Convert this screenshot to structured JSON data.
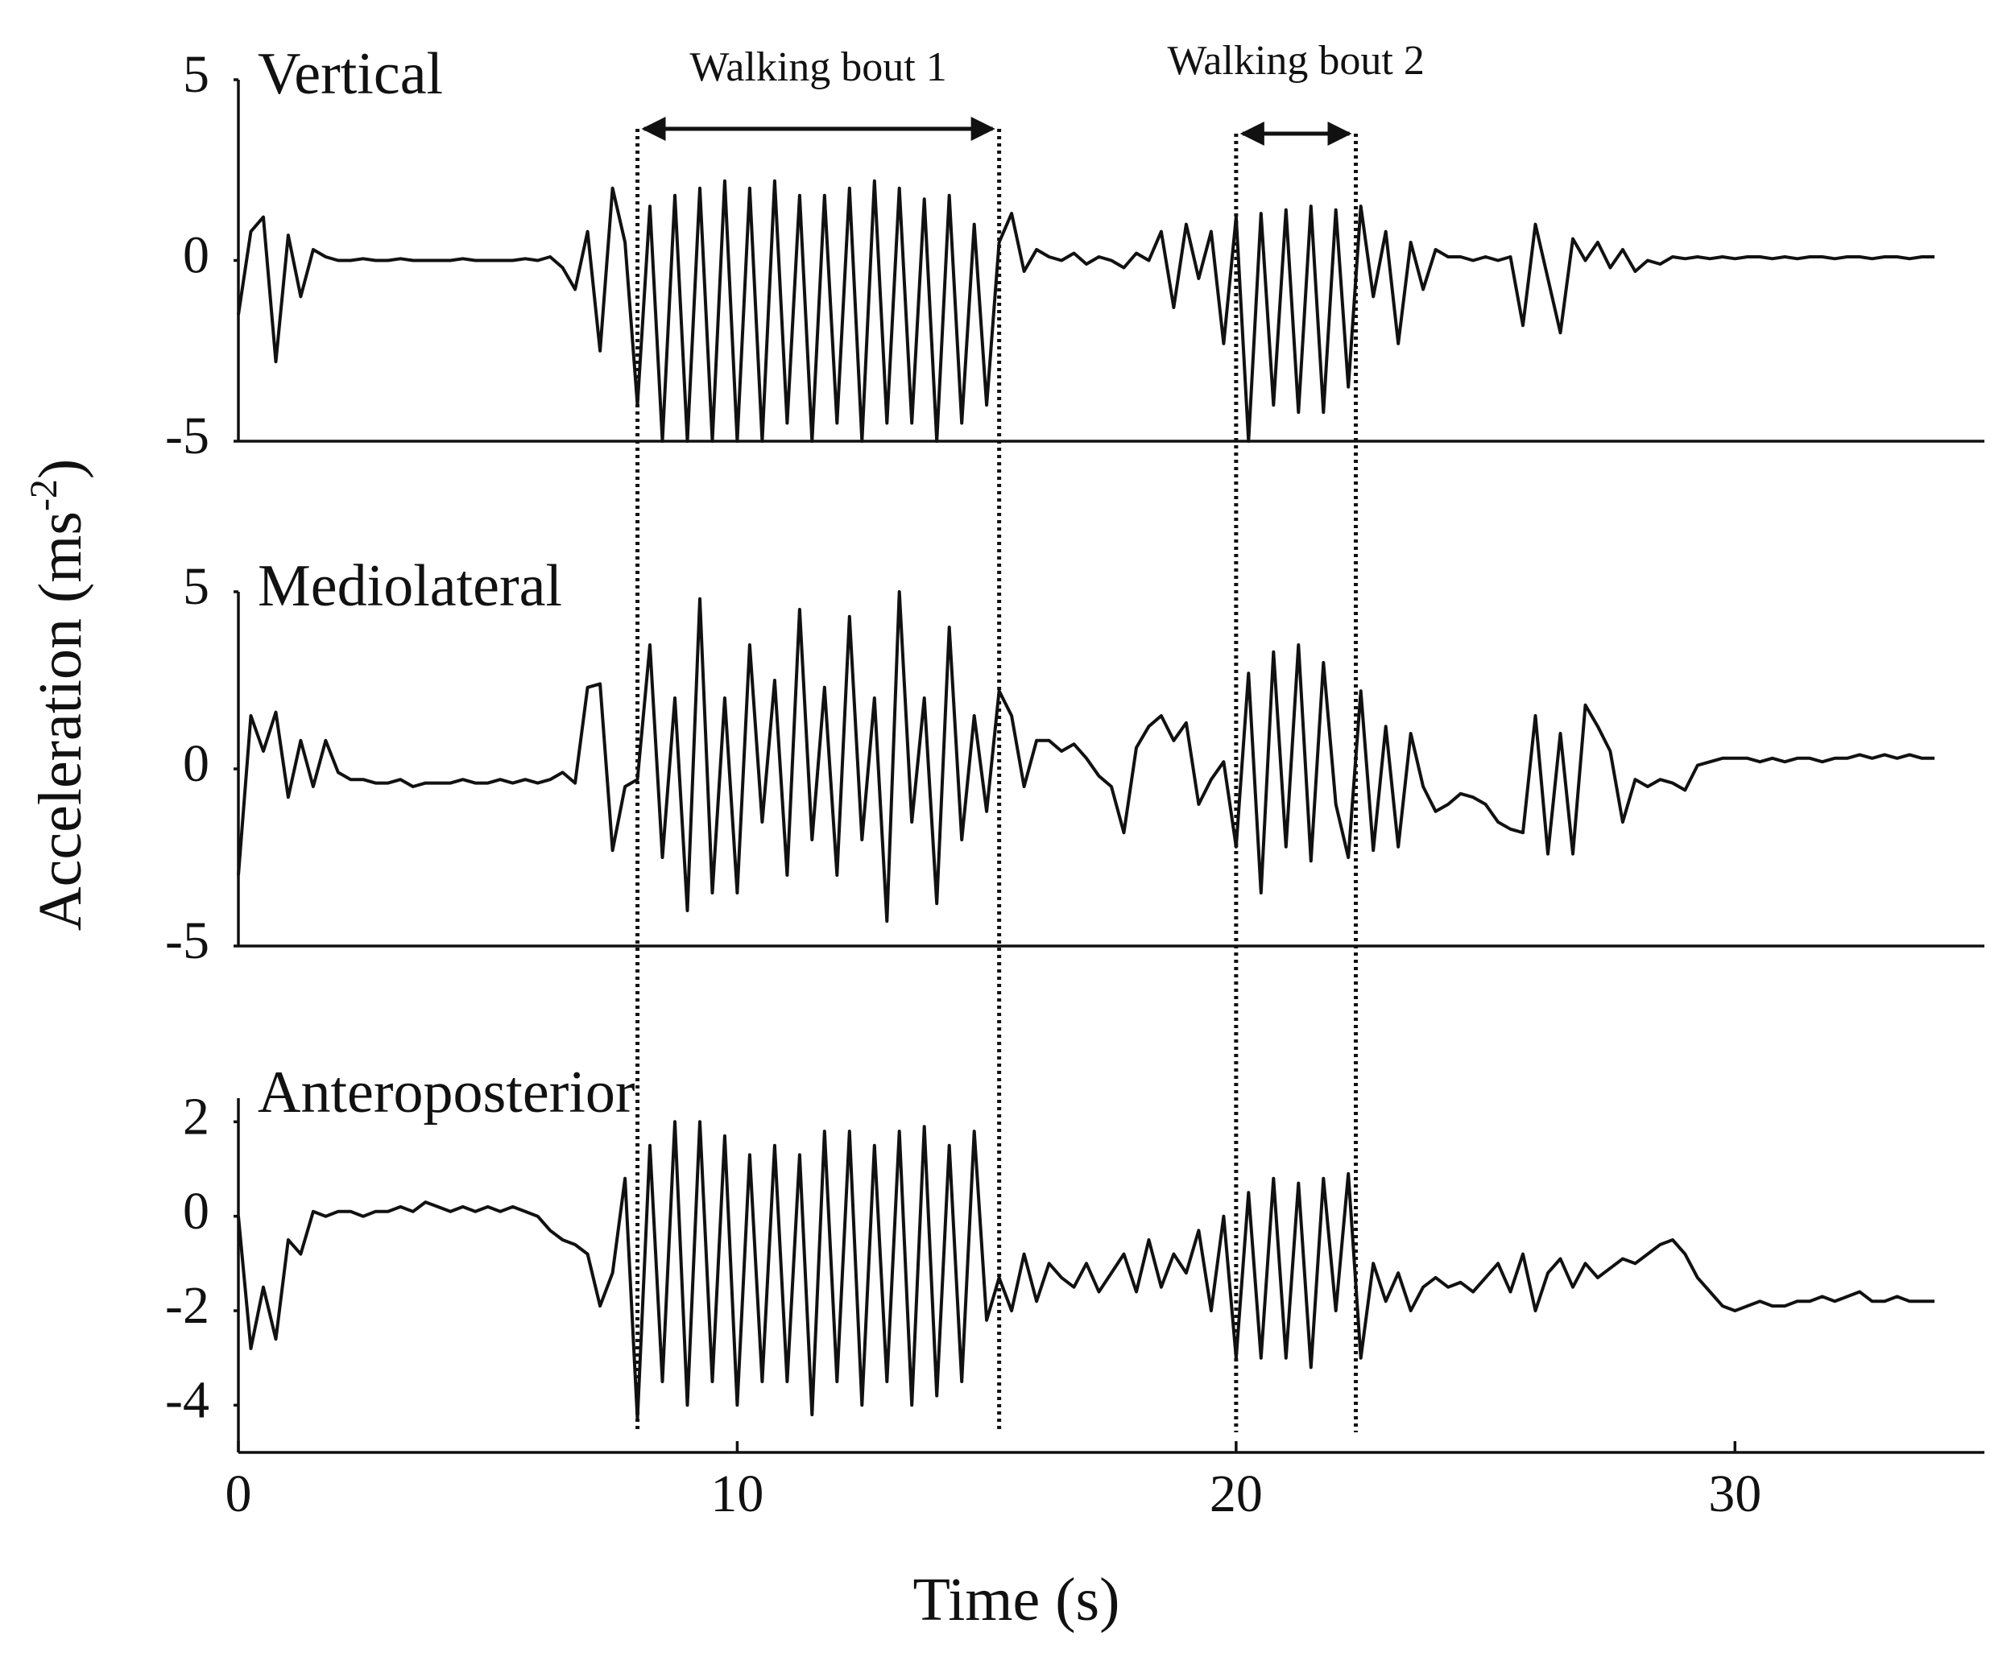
{
  "chart_data": [
    {
      "type": "line",
      "title": "Vertical",
      "ylabel": "Acceleration (ms",
      "ylabel_sup": "-2",
      "ylabel_end": ")",
      "color": "#000000",
      "xlim": [
        0,
        35
      ],
      "ylim": [
        -5,
        5
      ],
      "yticks": [
        -5,
        0,
        5
      ],
      "grid": false,
      "annotations": [
        {
          "text": "Walking bout 1",
          "start": 8,
          "end": 15.25
        },
        {
          "text": "Walking bout 2",
          "start": 20,
          "end": 22.4
        }
      ],
      "x": [
        0,
        0.25,
        0.5,
        0.75,
        1,
        1.25,
        1.5,
        1.75,
        2,
        2.25,
        2.5,
        2.75,
        3,
        3.25,
        3.5,
        3.75,
        4,
        4.25,
        4.5,
        4.75,
        5,
        5.25,
        5.5,
        5.75,
        6,
        6.25,
        6.5,
        6.75,
        7,
        7.25,
        7.5,
        7.75,
        8,
        8.25,
        8.5,
        8.75,
        9,
        9.25,
        9.5,
        9.75,
        10,
        10.25,
        10.5,
        10.75,
        11,
        11.25,
        11.5,
        11.75,
        12,
        12.25,
        12.5,
        12.75,
        13,
        13.25,
        13.5,
        13.75,
        14,
        14.25,
        14.5,
        14.75,
        15,
        15.25,
        15.5,
        15.75,
        16,
        16.25,
        16.5,
        16.75,
        17,
        17.25,
        17.5,
        17.75,
        18,
        18.25,
        18.5,
        18.75,
        19,
        19.25,
        19.5,
        19.75,
        20,
        20.25,
        20.5,
        20.75,
        21,
        21.25,
        21.5,
        21.75,
        22,
        22.25,
        22.5,
        22.75,
        23,
        23.25,
        23.5,
        23.75,
        24,
        24.25,
        24.5,
        24.75,
        25,
        25.25,
        25.5,
        25.75,
        26,
        26.25,
        26.5,
        26.75,
        27,
        27.25,
        27.5,
        27.75,
        28,
        28.25,
        28.5,
        28.75,
        29,
        29.25,
        29.5,
        29.75,
        30,
        30.25,
        30.5,
        30.75,
        31,
        31.25,
        31.5,
        31.75,
        32,
        32.25,
        32.5,
        32.75,
        33,
        33.25,
        33.5,
        33.75,
        34
      ],
      "values": [
        -1.5,
        0.8,
        1.2,
        -2.8,
        0.7,
        -1.0,
        0.3,
        0.1,
        0,
        0,
        0.05,
        0,
        0,
        0.05,
        0,
        0,
        0,
        0,
        0.05,
        0,
        0,
        0,
        0,
        0.05,
        0,
        0.1,
        -0.2,
        -0.8,
        0.8,
        -2.5,
        2.0,
        0.5,
        -4.0,
        1.5,
        -5.0,
        1.8,
        -5.0,
        2.0,
        -5.0,
        2.2,
        -5.0,
        2.0,
        -5.0,
        2.2,
        -4.5,
        1.8,
        -5.0,
        1.8,
        -4.5,
        2.0,
        -5.0,
        2.2,
        -4.5,
        2.0,
        -4.5,
        1.7,
        -5.0,
        1.8,
        -4.5,
        1.0,
        -4.0,
        0.5,
        1.3,
        -0.3,
        0.3,
        0.1,
        0,
        0.2,
        -0.1,
        0.1,
        0,
        -0.2,
        0.2,
        0,
        0.8,
        -1.3,
        1.0,
        -0.5,
        0.8,
        -2.3,
        1.2,
        -5.0,
        1.3,
        -4.0,
        1.4,
        -4.2,
        1.5,
        -4.2,
        1.4,
        -3.5,
        1.5,
        -1.0,
        0.8,
        -2.3,
        0.5,
        -0.8,
        0.3,
        0.1,
        0.1,
        0,
        0.1,
        0,
        0.1,
        -1.8,
        1.0,
        -0.5,
        -2.0,
        0.6,
        0,
        0.5,
        -0.2,
        0.3,
        -0.3,
        0,
        -0.1,
        0.1,
        0.05,
        0.1,
        0.05,
        0.1,
        0.05,
        0.1,
        0.1,
        0.05,
        0.1,
        0.05,
        0.1,
        0.1,
        0.05,
        0.1,
        0.1,
        0.05,
        0.1,
        0.1,
        0.05,
        0.1,
        0.1
      ]
    },
    {
      "type": "line",
      "title": "Mediolateral",
      "color": "#000000",
      "xlim": [
        0,
        35
      ],
      "ylim": [
        -5,
        5
      ],
      "yticks": [
        -5,
        0,
        5
      ],
      "grid": false,
      "x": [
        0,
        0.25,
        0.5,
        0.75,
        1,
        1.25,
        1.5,
        1.75,
        2,
        2.25,
        2.5,
        2.75,
        3,
        3.25,
        3.5,
        3.75,
        4,
        4.25,
        4.5,
        4.75,
        5,
        5.25,
        5.5,
        5.75,
        6,
        6.25,
        6.5,
        6.75,
        7,
        7.25,
        7.5,
        7.75,
        8,
        8.25,
        8.5,
        8.75,
        9,
        9.25,
        9.5,
        9.75,
        10,
        10.25,
        10.5,
        10.75,
        11,
        11.25,
        11.5,
        11.75,
        12,
        12.25,
        12.5,
        12.75,
        13,
        13.25,
        13.5,
        13.75,
        14,
        14.25,
        14.5,
        14.75,
        15,
        15.25,
        15.5,
        15.75,
        16,
        16.25,
        16.5,
        16.75,
        17,
        17.25,
        17.5,
        17.75,
        18,
        18.25,
        18.5,
        18.75,
        19,
        19.25,
        19.5,
        19.75,
        20,
        20.25,
        20.5,
        20.75,
        21,
        21.25,
        21.5,
        21.75,
        22,
        22.25,
        22.5,
        22.75,
        23,
        23.25,
        23.5,
        23.75,
        24,
        24.25,
        24.5,
        24.75,
        25,
        25.25,
        25.5,
        25.75,
        26,
        26.25,
        26.5,
        26.75,
        27,
        27.25,
        27.5,
        27.75,
        28,
        28.25,
        28.5,
        28.75,
        29,
        29.25,
        29.5,
        29.75,
        30,
        30.25,
        30.5,
        30.75,
        31,
        31.25,
        31.5,
        31.75,
        32,
        32.25,
        32.5,
        32.75,
        33,
        33.25,
        33.5,
        33.75,
        34
      ],
      "values": [
        -3.0,
        1.5,
        0.5,
        1.6,
        -0.8,
        0.8,
        -0.5,
        0.8,
        -0.1,
        -0.3,
        -0.3,
        -0.4,
        -0.4,
        -0.3,
        -0.5,
        -0.4,
        -0.4,
        -0.4,
        -0.3,
        -0.4,
        -0.4,
        -0.3,
        -0.4,
        -0.3,
        -0.4,
        -0.3,
        -0.1,
        -0.4,
        2.3,
        2.4,
        -2.3,
        -0.5,
        -0.3,
        3.5,
        -2.5,
        2.0,
        -4.0,
        4.8,
        -3.5,
        2.0,
        -3.5,
        3.5,
        -1.5,
        2.5,
        -3.0,
        4.5,
        -2.0,
        2.3,
        -3.0,
        4.3,
        -2.0,
        2.0,
        -4.3,
        5.0,
        -1.5,
        2.0,
        -3.8,
        4.0,
        -2.0,
        1.5,
        -1.2,
        2.2,
        1.5,
        -0.5,
        0.8,
        0.8,
        0.5,
        0.7,
        0.3,
        -0.2,
        -0.5,
        -1.8,
        0.6,
        1.2,
        1.5,
        0.8,
        1.3,
        -1.0,
        -0.3,
        0.2,
        -2.2,
        2.7,
        -3.5,
        3.3,
        -2.2,
        3.5,
        -2.6,
        3.0,
        -1.0,
        -2.5,
        2.2,
        -2.3,
        1.2,
        -2.2,
        1.0,
        -0.5,
        -1.2,
        -1.0,
        -0.7,
        -0.8,
        -1.0,
        -1.5,
        -1.7,
        -1.8,
        1.5,
        -2.4,
        1.0,
        -2.4,
        1.8,
        1.2,
        0.5,
        -1.5,
        -0.3,
        -0.5,
        -0.3,
        -0.4,
        -0.6,
        0.1,
        0.2,
        0.3,
        0.3,
        0.3,
        0.2,
        0.3,
        0.2,
        0.3,
        0.3,
        0.2,
        0.3,
        0.3,
        0.4,
        0.3,
        0.4,
        0.3,
        0.4,
        0.3,
        0.3
      ]
    },
    {
      "type": "line",
      "title": "Anteroposterior",
      "xlabel": "Time (s)",
      "color": "#000000",
      "xlim": [
        0,
        35
      ],
      "xticks": [
        0,
        10,
        20,
        30
      ],
      "ylim": [
        -5,
        2.5
      ],
      "yticks": [
        -4,
        -2,
        0,
        2
      ],
      "grid": false,
      "x": [
        0,
        0.25,
        0.5,
        0.75,
        1,
        1.25,
        1.5,
        1.75,
        2,
        2.25,
        2.5,
        2.75,
        3,
        3.25,
        3.5,
        3.75,
        4,
        4.25,
        4.5,
        4.75,
        5,
        5.25,
        5.5,
        5.75,
        6,
        6.25,
        6.5,
        6.75,
        7,
        7.25,
        7.5,
        7.75,
        8,
        8.25,
        8.5,
        8.75,
        9,
        9.25,
        9.5,
        9.75,
        10,
        10.25,
        10.5,
        10.75,
        11,
        11.25,
        11.5,
        11.75,
        12,
        12.25,
        12.5,
        12.75,
        13,
        13.25,
        13.5,
        13.75,
        14,
        14.25,
        14.5,
        14.75,
        15,
        15.25,
        15.5,
        15.75,
        16,
        16.25,
        16.5,
        16.75,
        17,
        17.25,
        17.5,
        17.75,
        18,
        18.25,
        18.5,
        18.75,
        19,
        19.25,
        19.5,
        19.75,
        20,
        20.25,
        20.5,
        20.75,
        21,
        21.25,
        21.5,
        21.75,
        22,
        22.25,
        22.5,
        22.75,
        23,
        23.25,
        23.5,
        23.75,
        24,
        24.25,
        24.5,
        24.75,
        25,
        25.25,
        25.5,
        25.75,
        26,
        26.25,
        26.5,
        26.75,
        27,
        27.25,
        27.5,
        27.75,
        28,
        28.25,
        28.5,
        28.75,
        29,
        29.25,
        29.5,
        29.75,
        30,
        30.25,
        30.5,
        30.75,
        31,
        31.25,
        31.5,
        31.75,
        32,
        32.25,
        32.5,
        32.75,
        33,
        33.25,
        33.5,
        33.75,
        34
      ],
      "values": [
        0,
        -2.8,
        -1.5,
        -2.6,
        -0.5,
        -0.8,
        0.1,
        0.0,
        0.1,
        0.1,
        0.0,
        0.1,
        0.1,
        0.2,
        0.1,
        0.3,
        0.2,
        0.1,
        0.2,
        0.1,
        0.2,
        0.1,
        0.2,
        0.1,
        0.0,
        -0.3,
        -0.5,
        -0.6,
        -0.8,
        -1.9,
        -1.2,
        0.8,
        -4.3,
        1.5,
        -3.5,
        2.0,
        -4.0,
        2.0,
        -3.5,
        1.7,
        -4.0,
        1.3,
        -3.5,
        1.5,
        -3.5,
        1.3,
        -4.2,
        1.8,
        -3.5,
        1.8,
        -4.0,
        1.5,
        -3.5,
        1.8,
        -4.0,
        1.9,
        -3.8,
        1.5,
        -3.5,
        1.8,
        -2.2,
        -1.3,
        -2.0,
        -0.8,
        -1.8,
        -1.0,
        -1.3,
        -1.5,
        -1.0,
        -1.6,
        -1.2,
        -0.8,
        -1.6,
        -0.5,
        -1.5,
        -0.8,
        -1.2,
        -0.3,
        -2.0,
        0.0,
        -3.0,
        0.5,
        -3.0,
        0.8,
        -3.0,
        0.7,
        -3.2,
        0.8,
        -2.0,
        0.9,
        -3.0,
        -1.0,
        -1.8,
        -1.2,
        -2.0,
        -1.5,
        -1.3,
        -1.5,
        -1.4,
        -1.6,
        -1.3,
        -1.0,
        -1.6,
        -0.8,
        -2.0,
        -1.2,
        -0.9,
        -1.5,
        -1.0,
        -1.3,
        -1.1,
        -0.9,
        -1.0,
        -0.8,
        -0.6,
        -0.5,
        -0.8,
        -1.3,
        -1.6,
        -1.9,
        -2.0,
        -1.9,
        -1.8,
        -1.9,
        -1.9,
        -1.8,
        -1.8,
        -1.7,
        -1.8,
        -1.7,
        -1.6,
        -1.8,
        -1.8,
        -1.7,
        -1.8,
        -1.8,
        -1.8
      ]
    }
  ]
}
